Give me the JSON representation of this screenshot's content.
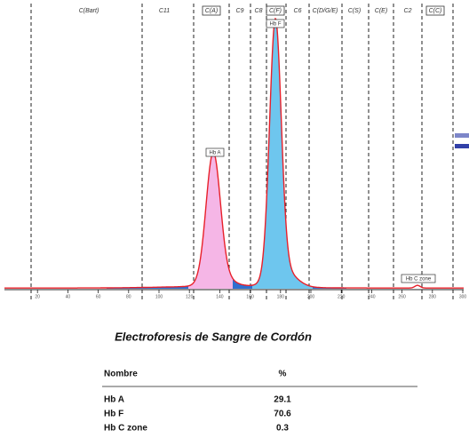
{
  "zones": [
    "C(Bart)",
    "C11",
    "C(A)",
    "C9",
    "C8",
    "C(F)",
    "C6",
    "C(D/G/E)",
    "C(S)",
    "C(E)",
    "C2",
    "C(C)"
  ],
  "peak_labels": [
    "Hb A",
    "Hb F",
    "Hb C zone"
  ],
  "axis_ticks": [
    20,
    40,
    60,
    80,
    100,
    120,
    140,
    160,
    180,
    200,
    220,
    240,
    260,
    280,
    300
  ],
  "title": "Electroforesis de Sangre de Cordón",
  "table": {
    "header": [
      "Nombre",
      "%"
    ],
    "rows": [
      [
        "Hb A",
        29.1
      ],
      [
        "Hb F",
        70.6
      ],
      [
        "Hb C zone",
        0.3
      ]
    ]
  }
}
